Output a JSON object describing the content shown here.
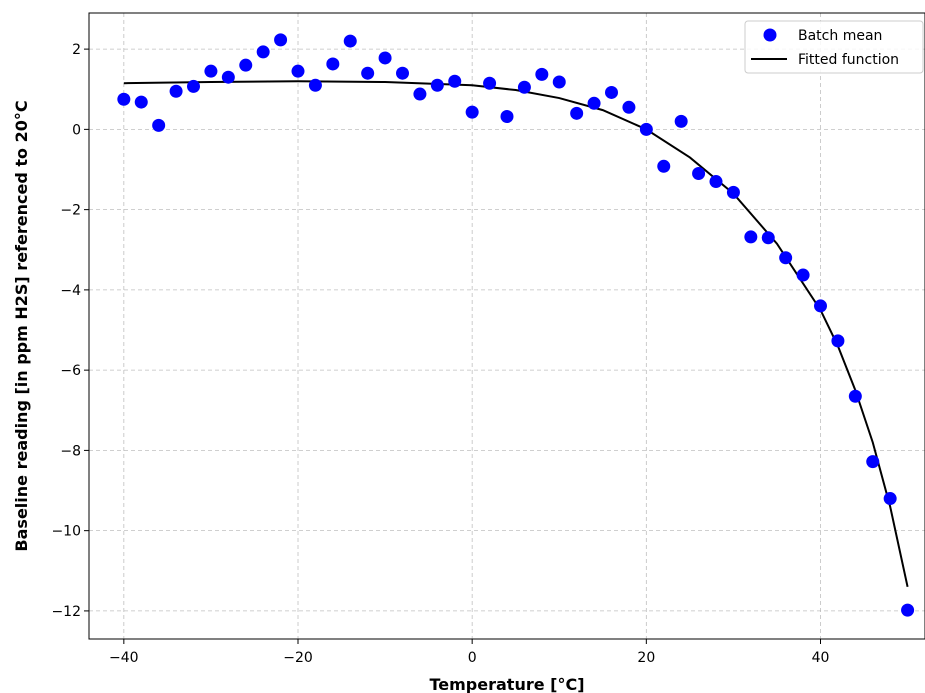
{
  "chart_data": {
    "type": "scatter",
    "xlabel": "Temperature [°C]",
    "ylabel": "Baseline reading [in ppm H2S] referenced to 20°C",
    "xlim": [
      -44,
      52
    ],
    "ylim": [
      -12.7,
      2.9
    ],
    "xticks": [
      -40,
      -20,
      0,
      20,
      40
    ],
    "yticks": [
      2,
      0,
      -2,
      -4,
      -6,
      -8,
      -10,
      -12
    ],
    "xtick_labels": [
      "−40",
      "−20",
      "0",
      "20",
      "40"
    ],
    "ytick_labels": [
      "2",
      "0",
      "−2",
      "−4",
      "−6",
      "−8",
      "−10",
      "−12"
    ],
    "grid": true,
    "legend_position": "top-right",
    "series": [
      {
        "name": "Batch mean",
        "kind": "scatter",
        "color": "#0000ff",
        "x": [
          -40,
          -38,
          -36,
          -34,
          -32,
          -30,
          -28,
          -26,
          -24,
          -22,
          -20,
          -18,
          -16,
          -14,
          -12,
          -10,
          -8,
          -6,
          -4,
          -2,
          0,
          2,
          4,
          6,
          8,
          10,
          12,
          14,
          16,
          18,
          20,
          22,
          24,
          26,
          28,
          30,
          32,
          34,
          36,
          38,
          40,
          42,
          44,
          46,
          48,
          50
        ],
        "y": [
          0.75,
          0.68,
          0.1,
          0.95,
          1.07,
          1.45,
          1.3,
          1.6,
          1.93,
          2.23,
          1.45,
          1.1,
          1.63,
          2.2,
          1.4,
          1.78,
          1.4,
          0.88,
          1.1,
          1.2,
          0.43,
          1.15,
          0.32,
          1.05,
          1.37,
          1.18,
          0.4,
          0.65,
          0.92,
          0.55,
          0.0,
          -0.92,
          0.2,
          -1.1,
          -1.3,
          -1.57,
          -2.68,
          -2.7,
          -3.2,
          -3.63,
          -4.4,
          -5.27,
          -6.65,
          -8.28,
          -9.2,
          -11.98
        ]
      },
      {
        "name": "Fitted function",
        "kind": "line",
        "color": "#000000",
        "x": [
          -40,
          -30,
          -20,
          -10,
          0,
          5,
          10,
          15,
          20,
          25,
          30,
          35,
          40,
          42,
          44,
          46,
          48,
          50
        ],
        "y": [
          1.15,
          1.18,
          1.2,
          1.18,
          1.1,
          0.98,
          0.78,
          0.48,
          0.0,
          -0.7,
          -1.6,
          -2.85,
          -4.5,
          -5.4,
          -6.5,
          -7.8,
          -9.4,
          -11.4
        ]
      }
    ]
  }
}
